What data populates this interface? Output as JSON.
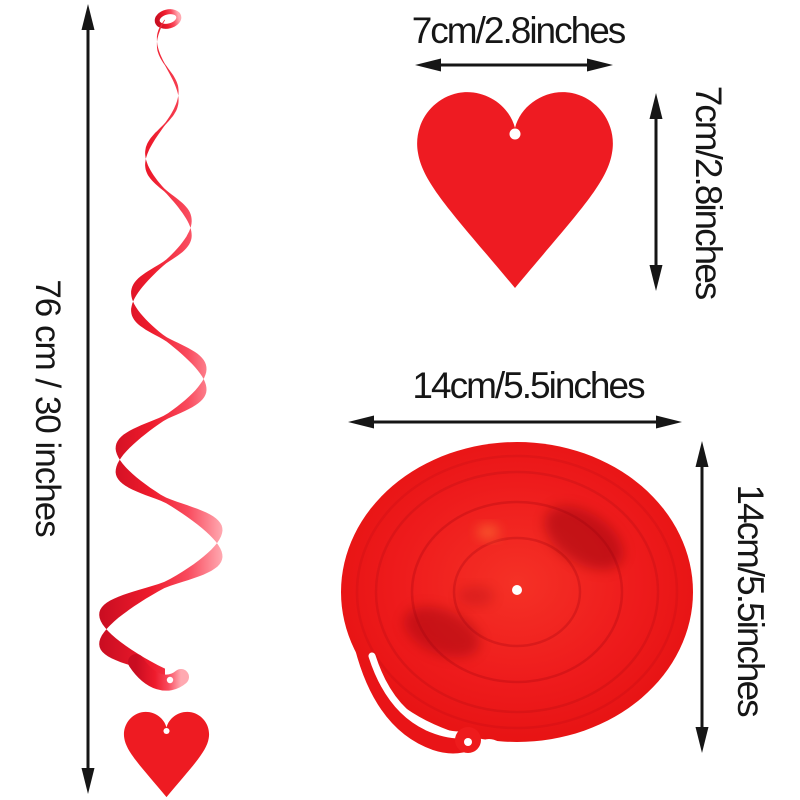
{
  "page": {
    "background": "#ffffff"
  },
  "palette": {
    "red": "#ee1b22",
    "deep_red": "#c40d1d",
    "pink_highlight": "#ffaab2",
    "ink": "#161616"
  },
  "swirl_section": {
    "length_label": "76 cm / 30 inches",
    "object": "foil-twirl-streamer",
    "charm": "small-heart-charm"
  },
  "heart_section": {
    "width_label": "7cm/2.8inches",
    "height_label": "7cm/2.8inches",
    "object": "red-heart-cutout"
  },
  "disc_section": {
    "width_label": "14cm/5.5inches",
    "height_label": "14cm/5.5inches",
    "object": "coiled-swirl-disc"
  }
}
